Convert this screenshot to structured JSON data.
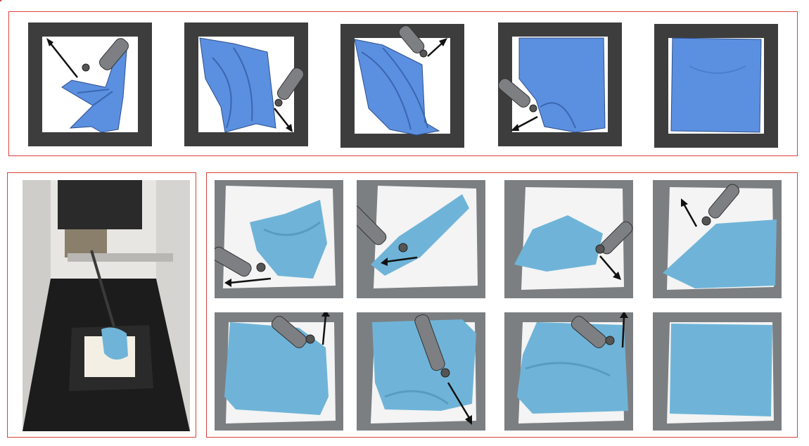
{
  "figure": {
    "rows": [
      {
        "name": "simulation-sequence",
        "steps": 5,
        "cloth_color": "#5b8fe0",
        "frame_color": "#3d3d3d"
      },
      {
        "name": "real-robot-sequence",
        "steps": 8,
        "cloth_color": "#6fb4d8",
        "foam_color": "#f4f4f4",
        "bed_color": "#7c7f82"
      }
    ],
    "border_color": "#d9413a",
    "arrow_color": "#111111"
  }
}
